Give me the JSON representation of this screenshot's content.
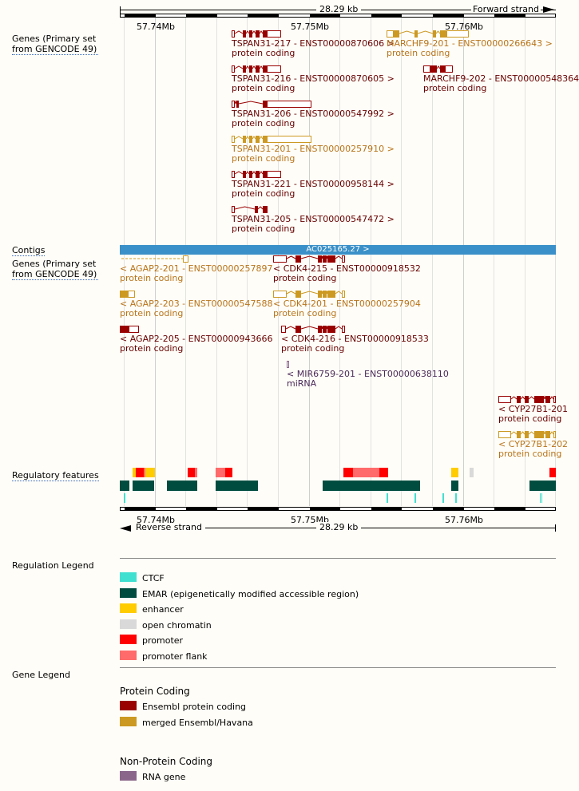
{
  "top_ruler": {
    "length": "28.29 kb",
    "strand": "Forward strand",
    "ticks": [
      "57.74Mb",
      "57.75Mb",
      "57.76Mb"
    ]
  },
  "bottom_ruler": {
    "length": "28.29 kb",
    "strand": "Reverse strand",
    "ticks": [
      "57.74Mb",
      "57.75Mb",
      "57.76Mb"
    ]
  },
  "tracks": {
    "genes_forward": "Genes (Primary set from GENCODE 49)",
    "contigs": "Contigs",
    "genes_reverse": "Genes (Primary set from GENCODE 49)",
    "regulatory": "Regulatory features"
  },
  "contig": {
    "name": "AC025165.27 >",
    "color": "#3a90c8"
  },
  "transcripts": [
    {
      "name": "TSPAN31-217 - ENST00000870606 >",
      "biotype": "protein coding",
      "color": "#990000"
    },
    {
      "name": "MARCHF9-201 - ENST00000266643 >",
      "biotype": "protein coding",
      "color": "#cc9922"
    },
    {
      "name": "TSPAN31-216 - ENST00000870605 >",
      "biotype": "protein coding",
      "color": "#990000"
    },
    {
      "name": "MARCHF9-202 - ENST00000548364",
      "biotype": "protein coding",
      "color": "#990000"
    },
    {
      "name": "TSPAN31-206 - ENST00000547992 >",
      "biotype": "protein coding",
      "color": "#990000"
    },
    {
      "name": "TSPAN31-201 - ENST00000257910 >",
      "biotype": "protein coding",
      "color": "#cc9922"
    },
    {
      "name": "TSPAN31-221 - ENST00000958144 >",
      "biotype": "protein coding",
      "color": "#990000"
    },
    {
      "name": "TSPAN31-205 - ENST00000547472 >",
      "biotype": "protein coding",
      "color": "#990000"
    },
    {
      "name": "< AGAP2-201 - ENST00000257897",
      "biotype": "protein coding",
      "color": "#cc9922"
    },
    {
      "name": "< CDK4-215 - ENST00000918532",
      "biotype": "protein coding",
      "color": "#990000"
    },
    {
      "name": "< AGAP2-203 - ENST00000547588",
      "biotype": "protein coding",
      "color": "#cc9922"
    },
    {
      "name": "< CDK4-201 - ENST00000257904",
      "biotype": "protein coding",
      "color": "#cc9922"
    },
    {
      "name": "< AGAP2-205 - ENST00000943666",
      "biotype": "protein coding",
      "color": "#990000"
    },
    {
      "name": "< CDK4-216 - ENST00000918533",
      "biotype": "protein coding",
      "color": "#990000"
    },
    {
      "name": "< MIR6759-201 - ENST00000638110",
      "biotype": "miRNA",
      "color": "#8b668b"
    },
    {
      "name": "< CYP27B1-201",
      "biotype": "protein coding",
      "color": "#990000"
    },
    {
      "name": "< CYP27B1-202",
      "biotype": "protein coding",
      "color": "#cc9922"
    }
  ],
  "regulation_legend": {
    "title": "Regulation Legend",
    "items": [
      {
        "label": "CTCF",
        "color": "#40e0d0"
      },
      {
        "label": "EMAR (epigenetically modified accessible region)",
        "color": "#004d40"
      },
      {
        "label": "enhancer",
        "color": "#ffcc00"
      },
      {
        "label": "open chromatin",
        "color": "#d9d9d9"
      },
      {
        "label": "promoter",
        "color": "#ff0000"
      },
      {
        "label": "promoter flank",
        "color": "#ff6a6a"
      }
    ]
  },
  "gene_legend": {
    "title": "Gene Legend",
    "protein_coding": {
      "title": "Protein Coding",
      "items": [
        {
          "label": "Ensembl protein coding",
          "color": "#990000"
        },
        {
          "label": "merged Ensembl/Havana",
          "color": "#cc9922"
        }
      ]
    },
    "non_protein_coding": {
      "title": "Non-Protein Coding",
      "items": [
        {
          "label": "RNA gene",
          "color": "#8b668b"
        }
      ]
    }
  }
}
